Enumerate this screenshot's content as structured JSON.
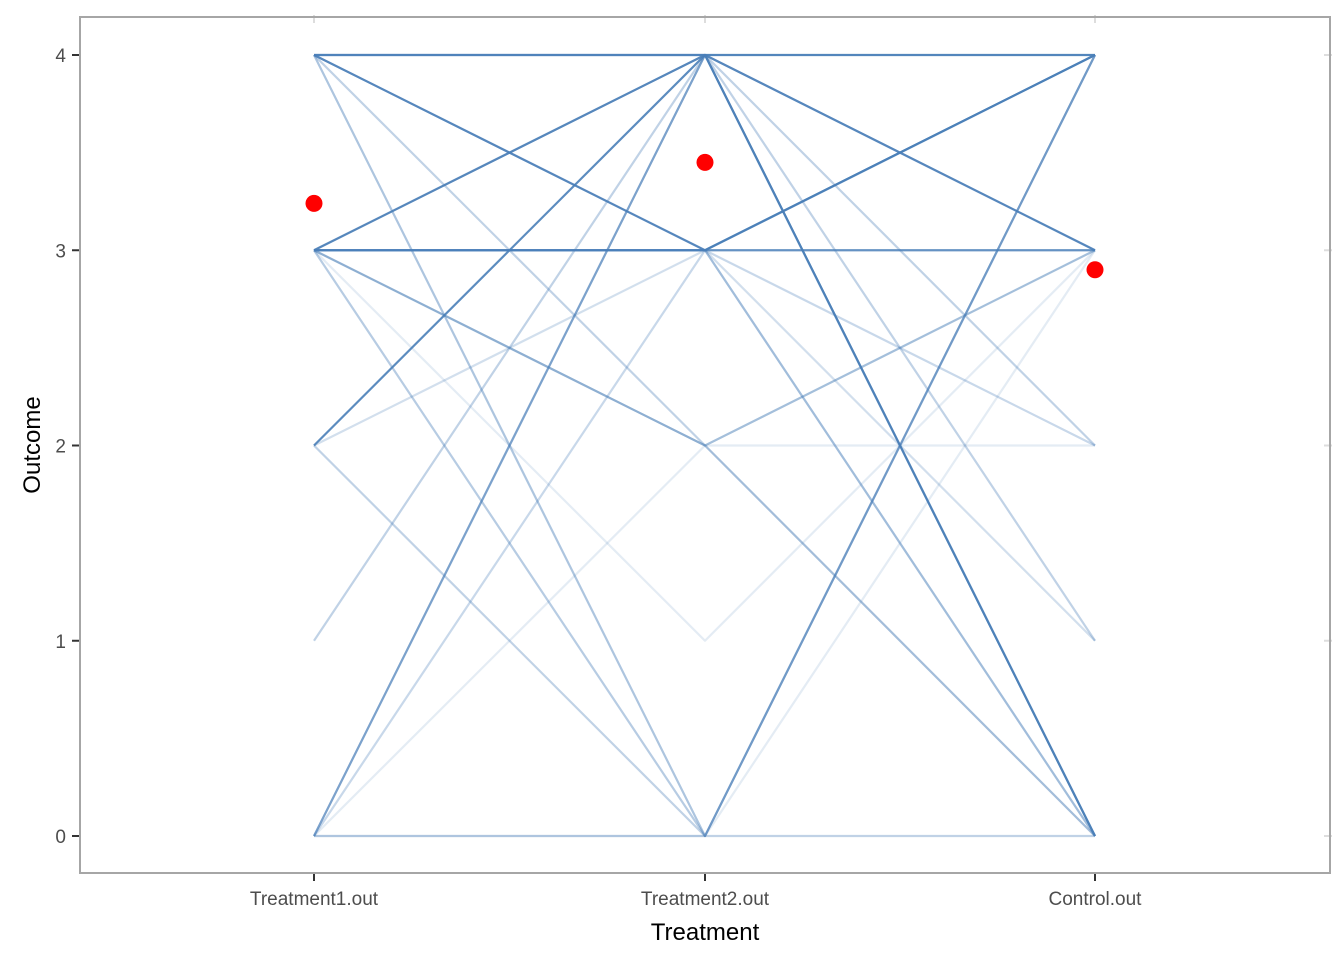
{
  "chart_data": {
    "type": "line",
    "title": "",
    "xlabel": "Treatment",
    "ylabel": "Outcome",
    "categories": [
      "Treatment1.out",
      "Treatment2.out",
      "Control.out"
    ],
    "ylim": [
      -0.18,
      4.2
    ],
    "yticks": [
      0,
      1,
      2,
      3,
      4
    ],
    "ytick_labels": [
      "0",
      "1",
      "2",
      "3",
      "4"
    ],
    "grid": false,
    "panel_border": true,
    "line_color": "#4a7fb8",
    "mean_color": "#ff0000",
    "profiles": [
      {
        "values": [
          4,
          4,
          4
        ],
        "opacity": 0.95
      },
      {
        "values": [
          4,
          3,
          4
        ],
        "opacity": 0.9
      },
      {
        "values": [
          3,
          4,
          3
        ],
        "opacity": 0.9
      },
      {
        "values": [
          3,
          3,
          4
        ],
        "opacity": 0.9
      },
      {
        "values": [
          3,
          3,
          3
        ],
        "opacity": 0.85
      },
      {
        "values": [
          2,
          4,
          0
        ],
        "opacity": 0.9
      },
      {
        "values": [
          0,
          4,
          0
        ],
        "opacity": 0.6
      },
      {
        "values": [
          4,
          0,
          4
        ],
        "opacity": 0.45
      },
      {
        "values": [
          3,
          0,
          4
        ],
        "opacity": 0.4
      },
      {
        "values": [
          3,
          2,
          3
        ],
        "opacity": 0.5
      },
      {
        "values": [
          4,
          2,
          0
        ],
        "opacity": 0.35
      },
      {
        "values": [
          0,
          3,
          2
        ],
        "opacity": 0.3
      },
      {
        "values": [
          1,
          4,
          1
        ],
        "opacity": 0.35
      },
      {
        "values": [
          2,
          3,
          1
        ],
        "opacity": 0.25
      },
      {
        "values": [
          3,
          1,
          3
        ],
        "opacity": 0.15
      },
      {
        "values": [
          0,
          2,
          2
        ],
        "opacity": 0.15
      },
      {
        "values": [
          3,
          4,
          2
        ],
        "opacity": 0.35
      },
      {
        "values": [
          0,
          0,
          3
        ],
        "opacity": 0.15
      },
      {
        "values": [
          4,
          3,
          0
        ],
        "opacity": 0.3
      },
      {
        "values": [
          2,
          0,
          0
        ],
        "opacity": 0.35
      },
      {
        "values": [
          0,
          4,
          3
        ],
        "opacity": 0.3
      },
      {
        "values": [
          3,
          2,
          0
        ],
        "opacity": 0.25
      },
      {
        "values": [
          4,
          4,
          0
        ],
        "opacity": 0.4
      },
      {
        "values": [
          0,
          0,
          4
        ],
        "opacity": 0.35
      },
      {
        "values": [
          3,
          3,
          0
        ],
        "opacity": 0.3
      }
    ],
    "means": [
      3.24,
      3.45,
      2.9
    ]
  }
}
